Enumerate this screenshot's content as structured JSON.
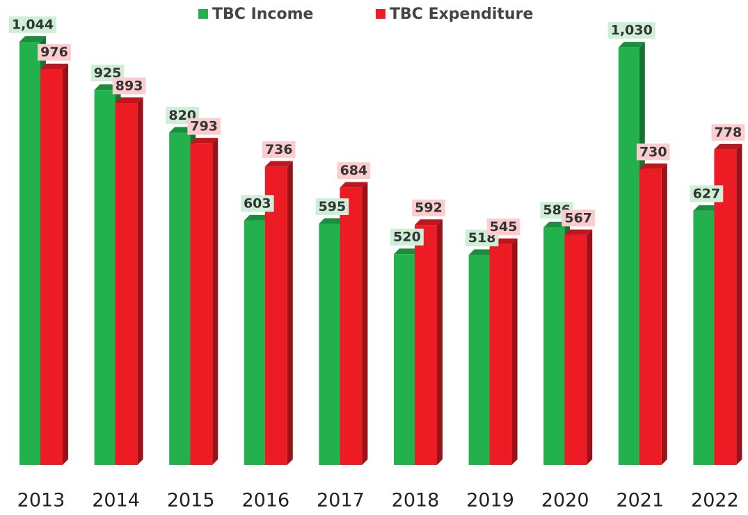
{
  "chart_data": {
    "type": "bar",
    "categories": [
      "2013",
      "2014",
      "2015",
      "2016",
      "2017",
      "2018",
      "2019",
      "2020",
      "2021",
      "2022"
    ],
    "series": [
      {
        "name": "TBC Income",
        "color": "#22b14c",
        "values": [
          1044,
          925,
          820,
          603,
          595,
          520,
          518,
          586,
          1030,
          627
        ],
        "value_labels": [
          "1,044",
          "925",
          "820",
          "603",
          "595",
          "520",
          "518",
          "586",
          "1,030",
          "627"
        ]
      },
      {
        "name": "TBC Expenditure",
        "color": "#ed1c24",
        "values": [
          976,
          893,
          793,
          736,
          684,
          592,
          545,
          567,
          730,
          778
        ],
        "value_labels": [
          "976",
          "893",
          "793",
          "736",
          "684",
          "592",
          "545",
          "567",
          "730",
          "778"
        ]
      }
    ]
  }
}
